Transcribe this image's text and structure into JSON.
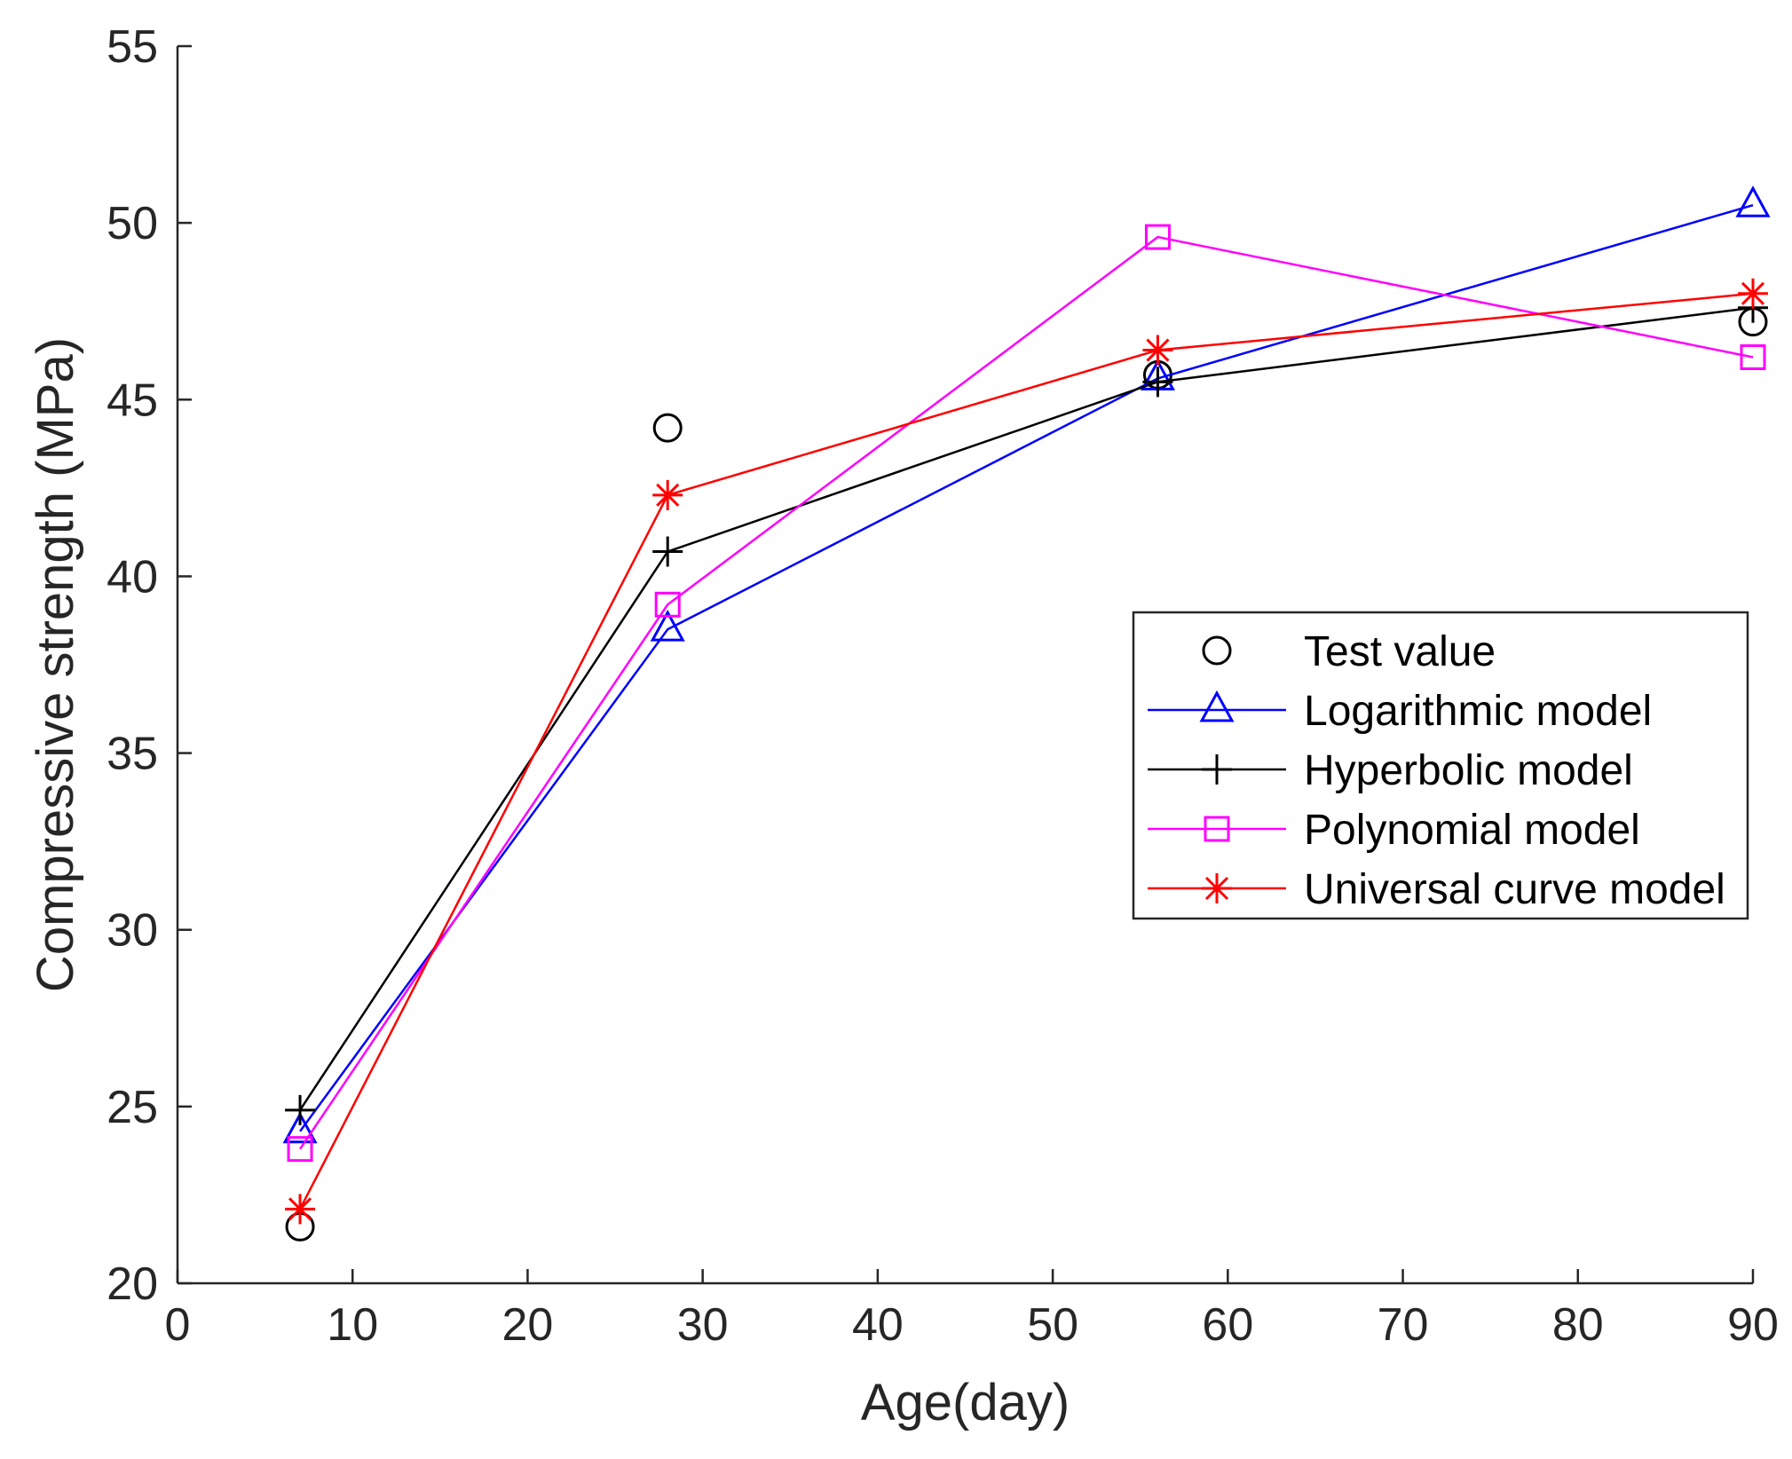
{
  "chart_data": {
    "type": "line",
    "title": "",
    "xlabel": "Age(day)",
    "ylabel": "Compressive strength (MPa)",
    "xlim": [
      0,
      90
    ],
    "ylim": [
      20,
      55
    ],
    "xticks": [
      0,
      10,
      20,
      30,
      40,
      50,
      60,
      70,
      80,
      90
    ],
    "yticks": [
      20,
      25,
      30,
      35,
      40,
      45,
      50,
      55
    ],
    "x": [
      7,
      28,
      56,
      90
    ],
    "grid": false,
    "legend_position": "right",
    "series": [
      {
        "name": "Test value",
        "color": "#000000",
        "marker": "circle",
        "line": false,
        "values": [
          21.6,
          44.2,
          45.7,
          47.2
        ]
      },
      {
        "name": "Logarithmic model",
        "color": "#0000ff",
        "marker": "triangle",
        "line": true,
        "values": [
          24.3,
          38.5,
          45.6,
          50.5
        ]
      },
      {
        "name": "Hyperbolic model",
        "color": "#000000",
        "marker": "plus",
        "line": true,
        "values": [
          24.9,
          40.7,
          45.5,
          47.6
        ]
      },
      {
        "name": "Polynomial model",
        "color": "#ff00ff",
        "marker": "square",
        "line": true,
        "values": [
          23.8,
          39.2,
          49.6,
          46.2
        ]
      },
      {
        "name": "Universal curve model",
        "color": "#ff0000",
        "marker": "asterisk",
        "line": true,
        "values": [
          22.1,
          42.3,
          46.4,
          48.0
        ]
      }
    ]
  }
}
